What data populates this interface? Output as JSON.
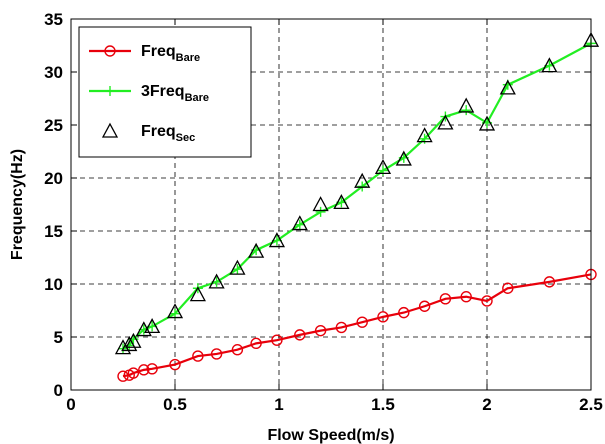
{
  "chart_data": {
    "type": "line",
    "xlabel": "Flow Speed(m/s)",
    "ylabel": "Frequency(Hz)",
    "xlim": [
      0,
      2.5
    ],
    "ylim": [
      0,
      35
    ],
    "xticks": [
      0,
      0.5,
      1,
      1.5,
      2,
      2.5
    ],
    "xtick_labels": [
      "0",
      "0.5",
      "1",
      "1.5",
      "2",
      "2.5"
    ],
    "yticks": [
      0,
      5,
      10,
      15,
      20,
      25,
      30,
      35
    ],
    "ytick_labels": [
      "0",
      "5",
      "10",
      "15",
      "20",
      "25",
      "30",
      "35"
    ],
    "grid": true,
    "legend_position": "top-left",
    "series": [
      {
        "name": "Freq",
        "name_subscript": "Bare",
        "color": "#e8000b",
        "marker": "circle",
        "line": true,
        "x": [
          0.25,
          0.28,
          0.3,
          0.35,
          0.39,
          0.5,
          0.61,
          0.7,
          0.8,
          0.89,
          0.99,
          1.1,
          1.2,
          1.3,
          1.4,
          1.5,
          1.6,
          1.7,
          1.8,
          1.9,
          2.0,
          2.1,
          2.3,
          2.5
        ],
        "y": [
          1.3,
          1.4,
          1.6,
          1.9,
          2.0,
          2.4,
          3.2,
          3.4,
          3.8,
          4.4,
          4.7,
          5.2,
          5.6,
          5.9,
          6.4,
          6.9,
          7.3,
          7.9,
          8.6,
          8.8,
          8.4,
          9.6,
          10.2,
          10.9
        ]
      },
      {
        "name": "3Freq",
        "name_subscript": "Bare",
        "color": "#22ee22",
        "marker": "plus",
        "line": true,
        "x": [
          0.25,
          0.28,
          0.3,
          0.35,
          0.39,
          0.5,
          0.61,
          0.7,
          0.8,
          0.89,
          0.99,
          1.1,
          1.2,
          1.3,
          1.4,
          1.5,
          1.6,
          1.7,
          1.8,
          1.9,
          2.0,
          2.1,
          2.3,
          2.5
        ],
        "y": [
          3.9,
          4.2,
          4.8,
          5.7,
          6.0,
          7.2,
          9.6,
          10.2,
          11.4,
          13.2,
          14.1,
          15.6,
          16.8,
          17.7,
          19.2,
          20.7,
          21.9,
          23.7,
          25.8,
          26.4,
          25.2,
          28.8,
          30.6,
          32.7
        ]
      },
      {
        "name": "Freq",
        "name_subscript": "Sec",
        "color": "#000000",
        "marker": "triangle",
        "line": false,
        "x": [
          0.25,
          0.28,
          0.3,
          0.35,
          0.39,
          0.5,
          0.61,
          0.7,
          0.8,
          0.89,
          0.99,
          1.1,
          1.2,
          1.3,
          1.4,
          1.5,
          1.6,
          1.7,
          1.8,
          1.9,
          2.0,
          2.1,
          2.3,
          2.5
        ],
        "y": [
          4.0,
          4.3,
          4.6,
          5.7,
          6.0,
          7.4,
          9.0,
          10.2,
          11.5,
          13.1,
          14.1,
          15.7,
          17.5,
          17.7,
          19.7,
          21.0,
          21.8,
          24.0,
          25.2,
          26.8,
          25.1,
          28.5,
          30.6,
          33.0
        ]
      }
    ]
  }
}
